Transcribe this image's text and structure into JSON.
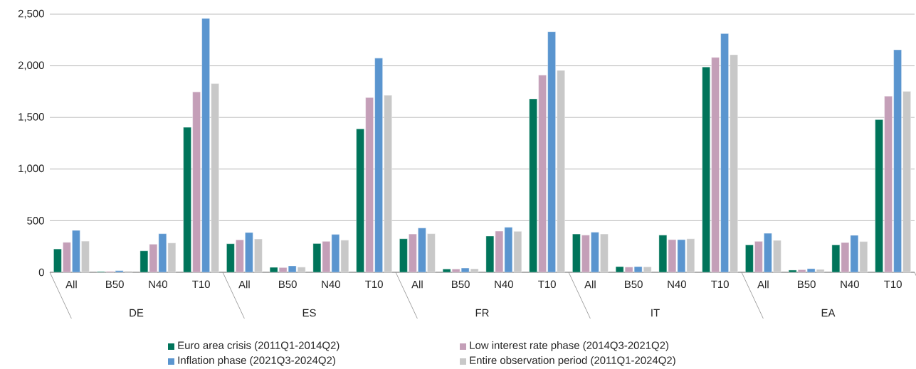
{
  "chart_data": {
    "type": "bar",
    "categories": [
      "All",
      "B50",
      "N40",
      "T10",
      "All",
      "B50",
      "N40",
      "T10",
      "All",
      "B50",
      "N40",
      "T10",
      "All",
      "B50",
      "N40",
      "T10",
      "All",
      "B50",
      "N40",
      "T10"
    ],
    "annotations": [
      "DE",
      "ES",
      "FR",
      "IT",
      "EA"
    ],
    "series": [
      {
        "name": "Euro area crisis (2011Q1-2014Q2)",
        "color": "#00745a",
        "values": [
          226,
          7,
          208,
          1404,
          277,
          48,
          279,
          1390,
          325,
          32,
          351,
          1680,
          371,
          55,
          360,
          1989,
          265,
          21,
          265,
          1479
        ]
      },
      {
        "name": "Low interest rate phase (2014Q3-2021Q2)",
        "color": "#c49fb8",
        "values": [
          290,
          9,
          272,
          1748,
          314,
          46,
          300,
          1693,
          371,
          32,
          399,
          1910,
          360,
          51,
          316,
          2081,
          300,
          25,
          288,
          1706
        ]
      },
      {
        "name": "Inflation phase (2021Q3-2024Q2)",
        "color": "#5a95cf",
        "values": [
          406,
          16,
          374,
          2459,
          385,
          62,
          367,
          2074,
          429,
          41,
          436,
          2330,
          388,
          55,
          316,
          2312,
          378,
          35,
          358,
          2155
        ]
      },
      {
        "name": "Entire observation period (2011Q1-2024Q2)",
        "color": "#c8c8c8",
        "values": [
          302,
          12,
          284,
          1828,
          323,
          50,
          311,
          1714,
          374,
          34,
          397,
          1955,
          371,
          53,
          325,
          2108,
          309,
          28,
          298,
          1752
        ]
      }
    ],
    "ylim": [
      0,
      2500
    ],
    "yticks": [
      0,
      {
        "value": 500,
        "label": "500"
      },
      {
        "value": 1000,
        "label": "1,000"
      },
      {
        "value": 1500,
        "label": "1,500"
      },
      {
        "value": 2000,
        "label": "2,000"
      },
      {
        "value": 2500,
        "label": "2,500"
      }
    ],
    "grid": "y",
    "legend": "bottom"
  }
}
